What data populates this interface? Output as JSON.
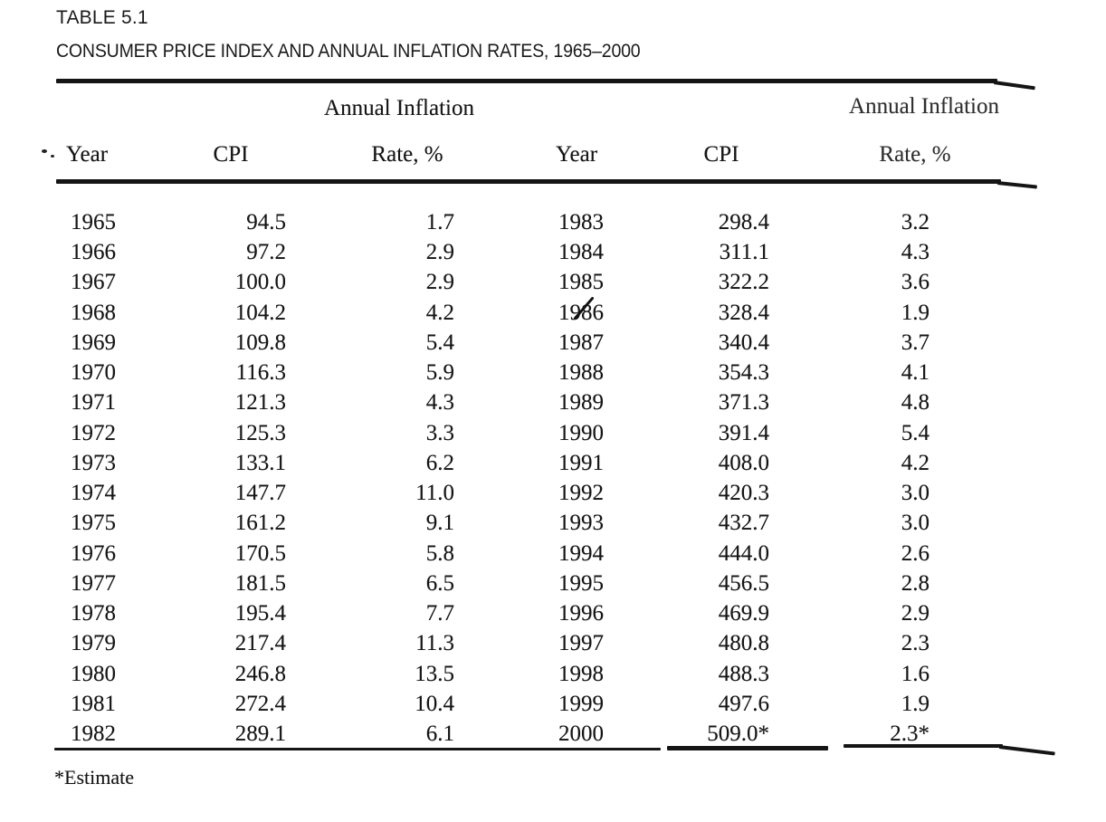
{
  "page": {
    "label": "TABLE 5.1",
    "title": "CONSUMER PRICE INDEX AND ANNUAL INFLATION RATES, 1965–2000",
    "footnote": "*Estimate"
  },
  "table": {
    "group_header_left": "Annual Inflation",
    "group_header_right": "Annual Inflation",
    "col_headers": {
      "year_left": "Year",
      "cpi_left": "CPI",
      "rate_left": "Rate, %",
      "year_right": "Year",
      "cpi_right": "CPI",
      "rate_right": "Rate, %"
    },
    "rows": [
      {
        "year_l": "1965",
        "cpi_l": "94.5",
        "rate_l": "1.7",
        "year_r": "1983",
        "cpi_r": "298.4",
        "rate_r": "3.2"
      },
      {
        "year_l": "1966",
        "cpi_l": "97.2",
        "rate_l": "2.9",
        "year_r": "1984",
        "cpi_r": "311.1",
        "rate_r": "4.3"
      },
      {
        "year_l": "1967",
        "cpi_l": "100.0",
        "rate_l": "2.9",
        "year_r": "1985",
        "cpi_r": "322.2",
        "rate_r": "3.6"
      },
      {
        "year_l": "1968",
        "cpi_l": "104.2",
        "rate_l": "4.2",
        "year_r": "1986",
        "cpi_r": "328.4",
        "rate_r": "1.9"
      },
      {
        "year_l": "1969",
        "cpi_l": "109.8",
        "rate_l": "5.4",
        "year_r": "1987",
        "cpi_r": "340.4",
        "rate_r": "3.7"
      },
      {
        "year_l": "1970",
        "cpi_l": "116.3",
        "rate_l": "5.9",
        "year_r": "1988",
        "cpi_r": "354.3",
        "rate_r": "4.1"
      },
      {
        "year_l": "1971",
        "cpi_l": "121.3",
        "rate_l": "4.3",
        "year_r": "1989",
        "cpi_r": "371.3",
        "rate_r": "4.8"
      },
      {
        "year_l": "1972",
        "cpi_l": "125.3",
        "rate_l": "3.3",
        "year_r": "1990",
        "cpi_r": "391.4",
        "rate_r": "5.4"
      },
      {
        "year_l": "1973",
        "cpi_l": "133.1",
        "rate_l": "6.2",
        "year_r": "1991",
        "cpi_r": "408.0",
        "rate_r": "4.2"
      },
      {
        "year_l": "1974",
        "cpi_l": "147.7",
        "rate_l": "11.0",
        "year_r": "1992",
        "cpi_r": "420.3",
        "rate_r": "3.0"
      },
      {
        "year_l": "1975",
        "cpi_l": "161.2",
        "rate_l": "9.1",
        "year_r": "1993",
        "cpi_r": "432.7",
        "rate_r": "3.0"
      },
      {
        "year_l": "1976",
        "cpi_l": "170.5",
        "rate_l": "5.8",
        "year_r": "1994",
        "cpi_r": "444.0",
        "rate_r": "2.6"
      },
      {
        "year_l": "1977",
        "cpi_l": "181.5",
        "rate_l": "6.5",
        "year_r": "1995",
        "cpi_r": "456.5",
        "rate_r": "2.8"
      },
      {
        "year_l": "1978",
        "cpi_l": "195.4",
        "rate_l": "7.7",
        "year_r": "1996",
        "cpi_r": "469.9",
        "rate_r": "2.9"
      },
      {
        "year_l": "1979",
        "cpi_l": "217.4",
        "rate_l": "11.3",
        "year_r": "1997",
        "cpi_r": "480.8",
        "rate_r": "2.3"
      },
      {
        "year_l": "1980",
        "cpi_l": "246.8",
        "rate_l": "13.5",
        "year_r": "1998",
        "cpi_r": "488.3",
        "rate_r": "1.6"
      },
      {
        "year_l": "1981",
        "cpi_l": "272.4",
        "rate_l": "10.4",
        "year_r": "1999",
        "cpi_r": "497.6",
        "rate_r": "1.9"
      },
      {
        "year_l": "1982",
        "cpi_l": "289.1",
        "rate_l": "6.1",
        "year_r": "2000",
        "cpi_r": "509.0*",
        "rate_r": "2.3*"
      }
    ]
  }
}
